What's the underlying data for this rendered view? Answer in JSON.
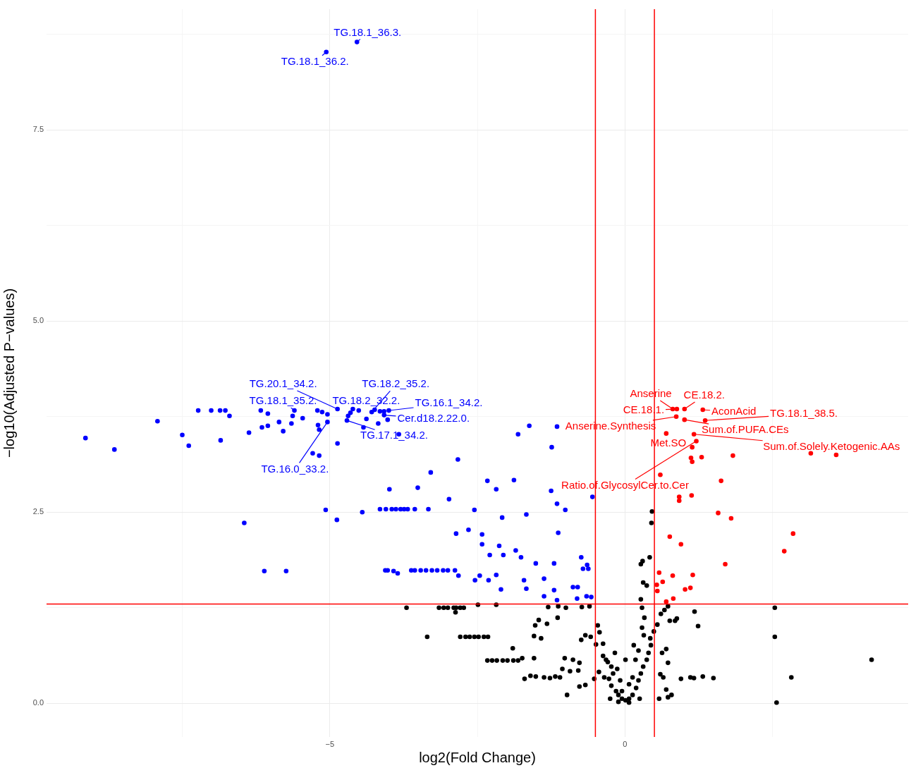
{
  "chart_data": {
    "type": "scatter",
    "xlabel": "log2(Fold Change)",
    "ylabel": "−log10(Adjusted P−values)",
    "xlim": [
      -9.8,
      4.8
    ],
    "xticks": [
      {
        "value": -7.5,
        "label": null
      },
      {
        "value": -5,
        "label": "−5"
      },
      {
        "value": -2.5,
        "label": null
      },
      0,
      {
        "value": 2.5,
        "label": null
      }
    ],
    "ylim": [
      -0.44,
      9.08
    ],
    "yticks": [
      {
        "value": 0,
        "label": "0.0"
      },
      {
        "value": 1.25,
        "label": null
      },
      2.5,
      {
        "value": 3.75,
        "label": null
      },
      {
        "value": 5,
        "label": "5.0"
      },
      {
        "value": 6.25,
        "label": null
      },
      7.5,
      {
        "value": 8.75,
        "label": null
      }
    ],
    "grid": true,
    "legend": false,
    "marker": "circle",
    "ref_lines": [
      {
        "axis": "x",
        "value": -0.5,
        "color": "#ff0000"
      },
      {
        "axis": "x",
        "value": 0.5,
        "color": "#ff0000"
      },
      {
        "axis": "y",
        "value": 1.3,
        "color": "#ff0000"
      }
    ],
    "series": [
      {
        "color": "#000000",
        "x": [
          -3.7,
          -3.15,
          -3.07,
          -3.0,
          -2.9,
          -2.86,
          -2.79,
          -2.73,
          -2.87,
          -2.49,
          -2.18,
          -3.35,
          -2.79,
          -2.7,
          -2.63,
          -2.55,
          -2.48,
          -2.39,
          -2.32,
          -1.9,
          -2.33,
          -2.25,
          -2.17,
          -2.07,
          -1.99,
          -1.89,
          -1.81,
          -1.7,
          -1.6,
          -1.51,
          -1.37,
          -1.27,
          -1.18,
          -1.1,
          -1.54,
          -1.74,
          -1.02,
          -1.3,
          -1.13,
          -1.0,
          -0.73,
          -0.6,
          -1.46,
          -1.32,
          -1.14,
          -1.52,
          -1.54,
          -1.42,
          -0.74,
          -0.67,
          -0.58,
          -0.88,
          -0.77,
          -1.06,
          -0.93,
          -0.79,
          -0.98,
          -0.77,
          -0.67,
          -0.52,
          -0.46,
          -0.43,
          -0.49,
          -0.37,
          -0.37,
          -0.29,
          -0.44,
          -0.35,
          -0.27,
          -0.23,
          -0.15,
          -0.11,
          -0.05,
          0.01,
          0.07,
          0.13,
          0.19,
          0.23,
          0.27,
          0.31,
          0.37,
          0.4,
          0.44,
          0.32,
          0.29,
          0.33,
          0.29,
          0.27,
          0.37,
          0.31,
          0.27,
          0.3,
          0.42,
          0.45,
          0.46,
          -0.13,
          -0.2,
          -0.11,
          0.07,
          -0.05,
          -0.23,
          -0.32,
          -0.17,
          0.01,
          0.18,
          0.13,
          -0.25,
          0.25,
          0.07,
          -0.08,
          0.43,
          0.49,
          0.55,
          0.61,
          0.67,
          0.73,
          0.63,
          0.7,
          0.76,
          0.73,
          0.7,
          0.58,
          0.79,
          0.85,
          0.88,
          0.6,
          0.65,
          0.95,
          1.18,
          1.24,
          1.11,
          1.17,
          1.32,
          1.5,
          2.54,
          2.54,
          2.82,
          2.57,
          4.18,
          0.73,
          0.23,
          0.15
        ],
        "values": [
          1.25,
          1.25,
          1.25,
          1.25,
          1.25,
          1.25,
          1.25,
          1.25,
          1.19,
          1.29,
          1.29,
          0.87,
          0.87,
          0.87,
          0.87,
          0.87,
          0.87,
          0.87,
          0.87,
          0.72,
          0.56,
          0.56,
          0.56,
          0.56,
          0.56,
          0.56,
          0.56,
          0.32,
          0.36,
          0.35,
          0.34,
          0.33,
          0.35,
          0.34,
          0.59,
          0.59,
          0.59,
          1.26,
          1.27,
          1.25,
          1.26,
          1.27,
          1.09,
          1.04,
          1.12,
          1.02,
          0.88,
          0.85,
          0.83,
          0.89,
          0.87,
          0.57,
          0.53,
          0.45,
          0.42,
          0.43,
          0.11,
          0.22,
          0.24,
          0.32,
          1.02,
          0.93,
          0.77,
          0.78,
          0.62,
          0.54,
          0.41,
          0.34,
          0.32,
          0.23,
          0.16,
          0.11,
          0.06,
          0.04,
          0.06,
          0.11,
          0.2,
          0.3,
          0.39,
          0.48,
          0.57,
          0.66,
          0.76,
          0.89,
          0.99,
          1.12,
          1.25,
          1.36,
          1.54,
          1.58,
          1.82,
          1.86,
          1.91,
          2.36,
          2.51,
          0.45,
          0.39,
          0.02,
          0.01,
          0.16,
          0.48,
          0.57,
          0.66,
          0.57,
          0.57,
          0.34,
          0.06,
          0.06,
          0.25,
          0.3,
          0.85,
          0.94,
          1.03,
          1.17,
          1.22,
          1.27,
          0.66,
          0.71,
          1.08,
          0.53,
          0.18,
          0.06,
          0.11,
          1.08,
          1.11,
          0.38,
          0.34,
          0.32,
          1.2,
          1.01,
          0.34,
          0.33,
          0.35,
          0.33,
          1.25,
          0.87,
          0.34,
          0.01,
          0.57,
          0.08,
          0.69,
          0.76
        ]
      },
      {
        "color": "#0000ff",
        "x": [
          -4.54,
          -5.06,
          -7.23,
          -7.01,
          -6.86,
          -6.77,
          -6.7,
          -7.92,
          -9.14,
          -8.65,
          -7.5,
          -7.39,
          -6.85,
          -6.37,
          -6.17,
          -6.05,
          -6.15,
          -6.05,
          -5.79,
          -5.86,
          -5.63,
          -5.6,
          -5.65,
          -5.46,
          -5.21,
          -5.13,
          -5.04,
          -5.2,
          -5.18,
          -5.29,
          -5.18,
          -5.04,
          -4.87,
          -4.87,
          -4.69,
          -4.65,
          -4.61,
          -4.51,
          -4.71,
          -4.43,
          -4.38,
          -4.29,
          -4.24,
          -4.15,
          -4.08,
          -4.0,
          -4.18,
          -4.02,
          -3.83,
          -4.08,
          -3.29,
          -2.83,
          -3.51,
          -3.99,
          -4.05,
          -4.15,
          -3.95,
          -3.88,
          -3.8,
          -3.74,
          -3.68,
          -3.56,
          -3.33,
          -4.45,
          -5.07,
          -4.88,
          -6.45,
          -2.98,
          -2.55,
          -2.33,
          -2.18,
          -1.88,
          -1.81,
          -1.62,
          -1.24,
          -1.15,
          -1.25,
          -1.15,
          -1.01,
          -0.55,
          -2.08,
          -1.67,
          -2.65,
          -2.86,
          -2.42,
          -1.13,
          -2.42,
          -2.13,
          -2.29,
          -1.85,
          -2.06,
          -1.76,
          -1.51,
          -1.2,
          -0.74,
          -0.64,
          -0.62,
          -0.71,
          -6.11,
          -5.74,
          -4.06,
          -4.02,
          -3.92,
          -3.85,
          -3.62,
          -3.56,
          -3.46,
          -3.37,
          -3.27,
          -3.18,
          -3.08,
          -3.0,
          -2.88,
          -2.82,
          -2.46,
          -2.31,
          -2.18,
          -2.1,
          -1.71,
          -1.67,
          -1.37,
          -1.2,
          -0.88,
          -0.8,
          -1.37,
          -1.15,
          -0.81,
          -0.65,
          -0.57,
          -2.54
        ],
        "values": [
          8.65,
          8.52,
          3.83,
          3.83,
          3.83,
          3.83,
          3.76,
          3.69,
          3.47,
          3.32,
          3.51,
          3.37,
          3.44,
          3.54,
          3.83,
          3.79,
          3.61,
          3.63,
          3.56,
          3.68,
          3.76,
          3.83,
          3.66,
          3.73,
          3.83,
          3.81,
          3.78,
          3.64,
          3.58,
          3.27,
          3.24,
          3.68,
          3.4,
          3.85,
          3.76,
          3.8,
          3.85,
          3.83,
          3.7,
          3.61,
          3.72,
          3.81,
          3.84,
          3.82,
          3.82,
          3.83,
          3.66,
          3.71,
          3.52,
          3.77,
          3.02,
          3.19,
          2.82,
          2.8,
          2.54,
          2.54,
          2.54,
          2.54,
          2.54,
          2.54,
          2.54,
          2.54,
          2.54,
          2.5,
          2.53,
          2.4,
          2.36,
          2.67,
          2.53,
          2.91,
          2.8,
          2.92,
          3.52,
          3.63,
          3.35,
          3.62,
          2.78,
          2.61,
          2.53,
          2.7,
          2.43,
          2.47,
          2.27,
          2.22,
          2.21,
          2.23,
          2.08,
          2.06,
          1.94,
          2.0,
          1.94,
          1.91,
          1.83,
          1.83,
          1.91,
          1.81,
          1.76,
          1.76,
          1.73,
          1.73,
          1.74,
          1.74,
          1.73,
          1.7,
          1.74,
          1.74,
          1.74,
          1.74,
          1.74,
          1.74,
          1.74,
          1.74,
          1.74,
          1.67,
          1.67,
          1.61,
          1.68,
          1.49,
          1.61,
          1.5,
          1.63,
          1.48,
          1.52,
          1.52,
          1.4,
          1.35,
          1.37,
          1.4,
          1.39,
          1.61
        ]
      },
      {
        "color": "#ff0000",
        "x": [
          1.32,
          0.88,
          0.81,
          1.01,
          0.87,
          1.01,
          1.36,
          0.7,
          1.17,
          1.21,
          1.14,
          1.3,
          1.12,
          1.14,
          1.83,
          3.15,
          3.58,
          0.6,
          1.63,
          0.92,
          0.92,
          1.13,
          1.58,
          1.8,
          0.76,
          0.95,
          2.85,
          2.7,
          1.7,
          0.58,
          0.81,
          1.15,
          0.64,
          0.54,
          1.02,
          1.11,
          0.55,
          0.82,
          0.7
        ],
        "values": [
          3.84,
          3.85,
          3.85,
          3.85,
          3.75,
          3.71,
          3.7,
          3.53,
          3.52,
          3.43,
          3.35,
          3.22,
          3.21,
          3.16,
          3.24,
          3.27,
          3.25,
          2.99,
          2.91,
          2.7,
          2.65,
          2.72,
          2.49,
          2.42,
          2.18,
          2.08,
          2.22,
          1.99,
          1.82,
          1.71,
          1.67,
          1.68,
          1.59,
          1.55,
          1.49,
          1.51,
          1.47,
          1.37,
          1.33
        ]
      }
    ],
    "annotations": [
      {
        "text": "TG.18.1_36.3.",
        "x": -4.54,
        "y": 8.65
      },
      {
        "text": "TG.18.1_36.2.",
        "x": -5.06,
        "y": 8.52
      },
      {
        "text": "TG.20.1_34.2.",
        "x": -4.87,
        "y": 3.85
      },
      {
        "text": "TG.18.2_35.2.",
        "x": -4.29,
        "y": 3.81
      },
      {
        "text": "TG.18.1_35.2.",
        "x": -5.6,
        "y": 3.83
      },
      {
        "text": "TG.18.2_32.2.",
        "x": -4.61,
        "y": 3.85
      },
      {
        "text": "TG.16.1_34.2.",
        "x": -4.0,
        "y": 3.83
      },
      {
        "text": "TG.16.0_33.2.",
        "x": -5.04,
        "y": 3.68
      },
      {
        "text": "Cer.d18.2.22.0.",
        "x": -4.08,
        "y": 3.77
      },
      {
        "text": "TG.17.1_34.2.",
        "x": -4.71,
        "y": 3.7
      },
      {
        "text": "Anserine",
        "x": 0.81,
        "y": 3.85
      },
      {
        "text": "CE.18.2.",
        "x": 1.01,
        "y": 3.85
      },
      {
        "text": "CE.18.1.",
        "x": 0.88,
        "y": 3.85
      },
      {
        "text": "AconAcid",
        "x": 1.32,
        "y": 3.84
      },
      {
        "text": "TG.18.1_38.5.",
        "x": 1.36,
        "y": 3.7
      },
      {
        "text": "Anserine.Synthesis",
        "x": 0.87,
        "y": 3.75
      },
      {
        "text": "Sum.of.PUFA.CEs",
        "x": 1.01,
        "y": 3.71
      },
      {
        "text": "Met.SO",
        "x": 0.7,
        "y": 3.53
      },
      {
        "text": "Sum.of.Solely.Ketogenic.AAs",
        "x": 1.17,
        "y": 3.52
      },
      {
        "text": "Ratio.of.GlycosylCer.to.Cer",
        "x": 1.21,
        "y": 3.43
      }
    ]
  }
}
